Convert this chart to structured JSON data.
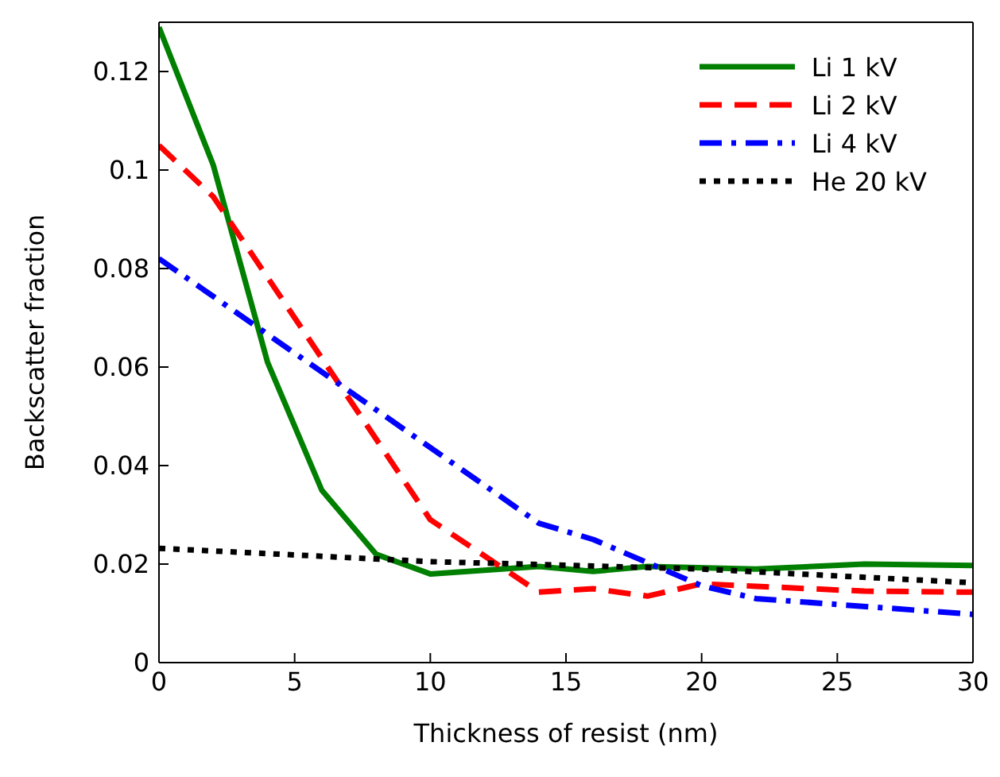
{
  "chart_data": {
    "type": "line",
    "xlabel": "Thickness of resist (nm)",
    "ylabel": "Backscatter fraction",
    "xlim": [
      0,
      30
    ],
    "xticks": [
      0,
      5,
      10,
      15,
      20,
      25,
      30
    ],
    "ylim": [
      0,
      0.13
    ],
    "yticks": [
      0,
      0.02,
      0.04,
      0.06,
      0.08,
      {
        "value": 0.1,
        "label": "0.1"
      },
      0.12
    ],
    "legend": "top right",
    "marker": "none",
    "series": [
      {
        "name": "Li 1 kV",
        "color": "#007f00",
        "line_style": "solid",
        "x": [
          0,
          2,
          4,
          6,
          8,
          10,
          14,
          16,
          18,
          22,
          26,
          30
        ],
        "values": [
          0.129,
          0.101,
          0.061,
          0.035,
          0.022,
          0.018,
          0.0195,
          0.0185,
          0.0195,
          0.019,
          0.02,
          0.0197
        ]
      },
      {
        "name": "Li 2 kV",
        "color": "#ff0000",
        "line_style": "dashed",
        "x": [
          0,
          2,
          10,
          14,
          16,
          18,
          20,
          22,
          26,
          30
        ],
        "values": [
          0.105,
          0.0946,
          0.029,
          0.0143,
          0.015,
          0.0135,
          0.016,
          0.0155,
          0.0145,
          0.0143
        ]
      },
      {
        "name": "Li 4 kV",
        "color": "#0000ff",
        "line_style": "dashdot",
        "x": [
          0,
          6,
          14,
          16,
          20,
          22,
          30
        ],
        "values": [
          0.082,
          0.059,
          0.0283,
          0.025,
          0.0156,
          0.013,
          0.0098
        ]
      },
      {
        "name": "He 20 kV",
        "color": "#000000",
        "line_style": "dotted",
        "x": [
          0,
          10,
          20,
          30
        ],
        "values": [
          0.0232,
          0.0205,
          0.019,
          0.0162
        ]
      }
    ]
  }
}
